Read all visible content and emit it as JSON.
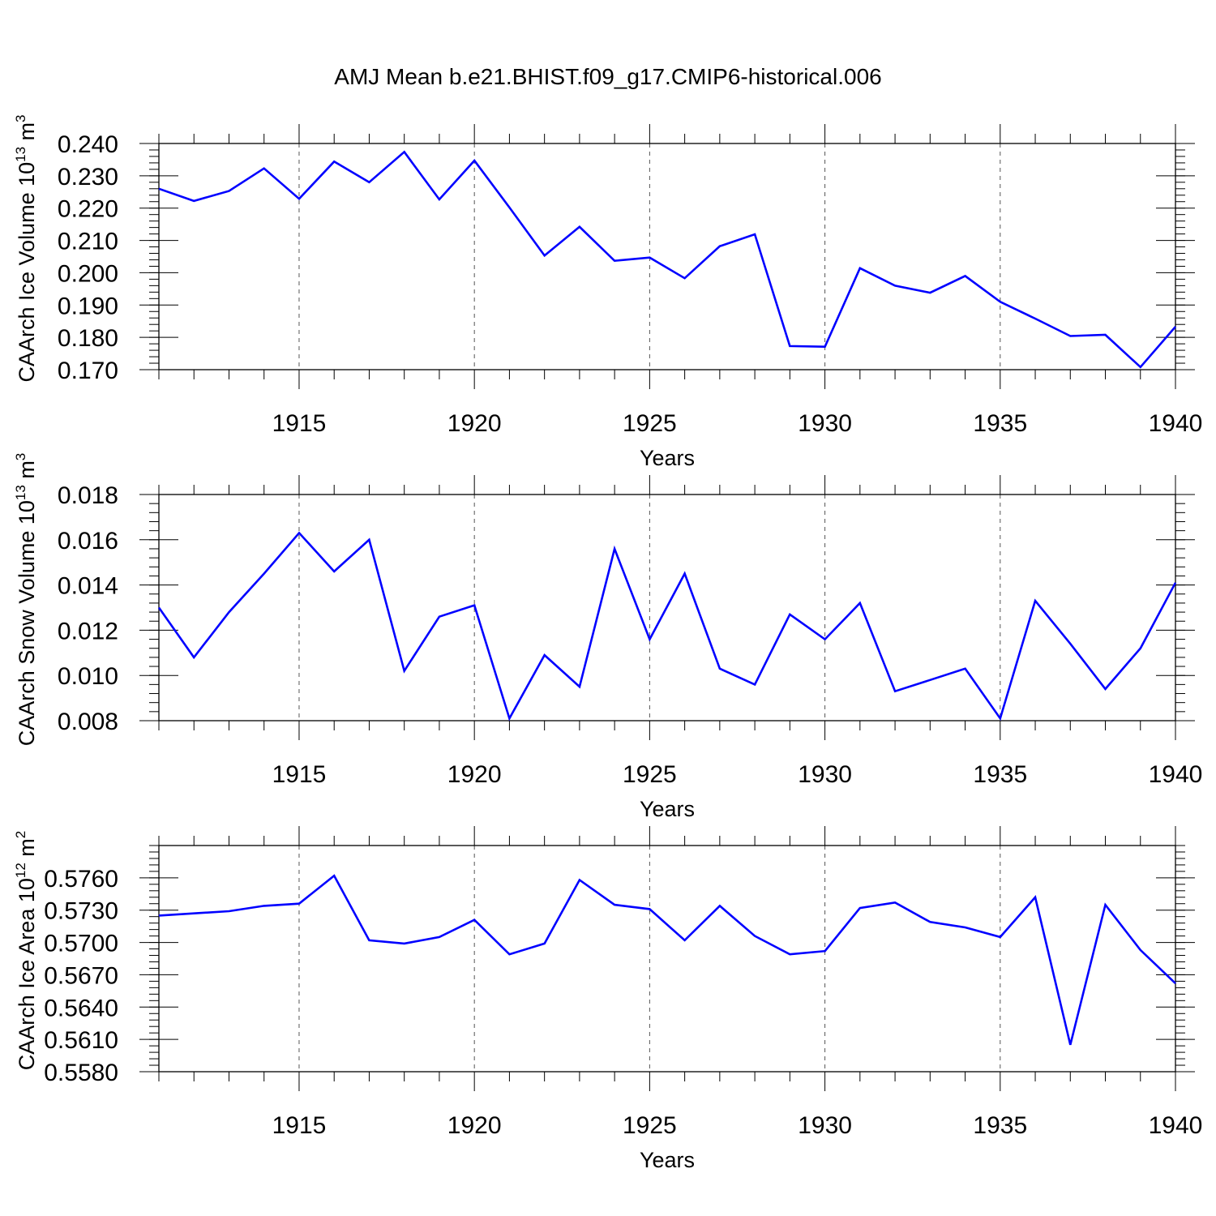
{
  "chart_data": {
    "title": "AMJ Mean b.e21.BHIST.f09_g17.CMIP6-historical.006",
    "line_color": "#0000ff",
    "panels": [
      {
        "type": "line",
        "ylabel": "CAArch Ice Volume 10",
        "ylabel_exponent": "13",
        "ylabel_unit": " m",
        "ylabel_unit_exponent": "3",
        "xlabel": "Years",
        "xlim": [
          1911,
          1940
        ],
        "ylim": [
          0.17,
          0.24
        ],
        "yticks": [
          "0.170",
          "0.180",
          "0.190",
          "0.200",
          "0.210",
          "0.220",
          "0.230",
          "0.240"
        ],
        "xticks": [
          "1915",
          "1920",
          "1925",
          "1930",
          "1935",
          "1940"
        ],
        "x": [
          1911,
          1912,
          1913,
          1914,
          1915,
          1916,
          1917,
          1918,
          1919,
          1920,
          1921,
          1922,
          1923,
          1924,
          1925,
          1926,
          1927,
          1928,
          1929,
          1930,
          1931,
          1932,
          1933,
          1934,
          1935,
          1936,
          1937,
          1938,
          1939,
          1940
        ],
        "values": [
          0.226,
          0.2222,
          0.2253,
          0.2323,
          0.2229,
          0.2344,
          0.228,
          0.2374,
          0.2227,
          0.2347,
          0.2202,
          0.2053,
          0.2142,
          0.2037,
          0.2047,
          0.1983,
          0.2082,
          0.2119,
          0.1773,
          0.1771,
          0.2014,
          0.196,
          0.1938,
          0.199,
          0.191,
          0.1858,
          0.1804,
          0.1808,
          0.1708,
          0.1833
        ]
      },
      {
        "type": "line",
        "ylabel": "CAArch Snow Volume 10",
        "ylabel_exponent": "13",
        "ylabel_unit": " m",
        "ylabel_unit_exponent": "3",
        "xlabel": "Years",
        "xlim": [
          1911,
          1940
        ],
        "ylim": [
          0.008,
          0.018
        ],
        "yticks": [
          "0.008",
          "0.010",
          "0.012",
          "0.014",
          "0.016",
          "0.018"
        ],
        "xticks": [
          "1915",
          "1920",
          "1925",
          "1930",
          "1935",
          "1940"
        ],
        "x": [
          1911,
          1912,
          1913,
          1914,
          1915,
          1916,
          1917,
          1918,
          1919,
          1920,
          1921,
          1922,
          1923,
          1924,
          1925,
          1926,
          1927,
          1928,
          1929,
          1930,
          1931,
          1932,
          1933,
          1934,
          1935,
          1936,
          1937,
          1938,
          1939,
          1940
        ],
        "values": [
          0.013,
          0.0108,
          0.0128,
          0.0145,
          0.0163,
          0.0146,
          0.016,
          0.0102,
          0.0126,
          0.0131,
          0.0081,
          0.0109,
          0.0095,
          0.0156,
          0.0116,
          0.0145,
          0.0103,
          0.0096,
          0.0127,
          0.0116,
          0.0132,
          0.0093,
          0.0098,
          0.0103,
          0.0081,
          0.0133,
          0.0114,
          0.0094,
          0.0112,
          0.0141
        ]
      },
      {
        "type": "line",
        "ylabel": "CAArch Ice Area 10",
        "ylabel_exponent": "12",
        "ylabel_unit": " m",
        "ylabel_unit_exponent": "2",
        "xlabel": "Years",
        "xlim": [
          1911,
          1940
        ],
        "ylim": [
          0.558,
          0.579
        ],
        "yticks": [
          "0.5580",
          "0.5610",
          "0.5640",
          "0.5670",
          "0.5700",
          "0.5730",
          "0.5760"
        ],
        "xticks": [
          "1915",
          "1920",
          "1925",
          "1930",
          "1935",
          "1940"
        ],
        "x": [
          1911,
          1912,
          1913,
          1914,
          1915,
          1916,
          1917,
          1918,
          1919,
          1920,
          1921,
          1922,
          1923,
          1924,
          1925,
          1926,
          1927,
          1928,
          1929,
          1930,
          1931,
          1932,
          1933,
          1934,
          1935,
          1936,
          1937,
          1938,
          1939,
          1940
        ],
        "values": [
          0.5725,
          0.5727,
          0.5729,
          0.5734,
          0.5736,
          0.5762,
          0.5702,
          0.5699,
          0.5705,
          0.5721,
          0.5689,
          0.5699,
          0.5758,
          0.5735,
          0.5731,
          0.5702,
          0.5734,
          0.5706,
          0.5689,
          0.5692,
          0.5732,
          0.5737,
          0.5719,
          0.5714,
          0.5705,
          0.5742,
          0.5605,
          0.5735,
          0.5693,
          0.5662
        ]
      }
    ]
  }
}
